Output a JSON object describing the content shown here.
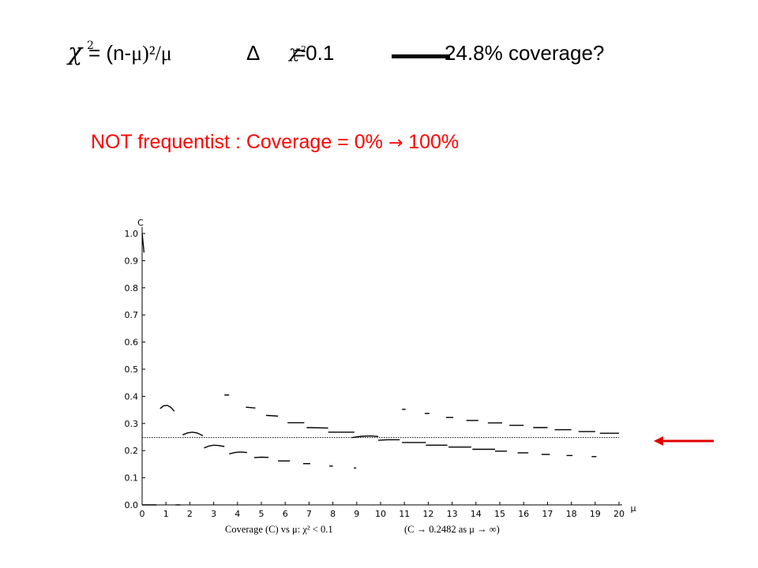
{
  "formula": {
    "chi_symbol": "χ",
    "chi_exp": "2",
    "expr_prefix": "= (n-",
    "expr_serif": "μ)²/μ",
    "delta": "Δ",
    "chi2_symbol": "χ",
    "chi2_exp": "2",
    "threshold": "=0.1",
    "result": "24.8% coverage?"
  },
  "headline": {
    "text": "NOT frequentist : Coverage = 0%",
    "arrow": "→",
    "tail": "100%",
    "color": "#ff0000"
  },
  "chart_data": {
    "type": "line",
    "ylabel": "C",
    "xlabel": "μ",
    "caption_left": "Coverage (C) vs μ:  χ² < 0.1",
    "caption_right": "(C → 0.2482 as μ → ∞)",
    "xlim": [
      0,
      20
    ],
    "ylim": [
      0,
      1.0
    ],
    "xticks": [
      "0",
      "1",
      "2",
      "3",
      "4",
      "5",
      "6",
      "7",
      "8",
      "9",
      "10",
      "11",
      "12",
      "13",
      "14",
      "15",
      "16",
      "17",
      "18",
      "19",
      "20"
    ],
    "yticks": [
      "0.0",
      "0.1",
      "0.2",
      "0.3",
      "0.4",
      "0.5",
      "0.6",
      "0.7",
      "0.8",
      "0.9",
      "1.0"
    ],
    "asymptote": 0.2482,
    "segments": [
      {
        "x": [
          0.0,
          0.08
        ],
        "y": [
          1.0,
          0.93
        ]
      },
      {
        "x": [
          0.0,
          0.6
        ],
        "y": [
          0.0,
          0.0
        ]
      },
      {
        "x": [
          1.4,
          1.6
        ],
        "y": [
          0.0,
          0.0
        ]
      },
      {
        "x": [
          0.75,
          0.9,
          1.05,
          1.2,
          1.35
        ],
        "y": [
          0.355,
          0.365,
          0.367,
          0.36,
          0.345
        ]
      },
      {
        "x": [
          1.7,
          1.9,
          2.1,
          2.3,
          2.55
        ],
        "y": [
          0.258,
          0.265,
          0.268,
          0.265,
          0.255
        ]
      },
      {
        "x": [
          2.6,
          2.8,
          3.0,
          3.2,
          3.45
        ],
        "y": [
          0.21,
          0.217,
          0.22,
          0.219,
          0.215
        ]
      },
      {
        "x": [
          3.45,
          3.65
        ],
        "y": [
          0.405,
          0.405
        ]
      },
      {
        "x": [
          3.65,
          3.9,
          4.1,
          4.4
        ],
        "y": [
          0.188,
          0.193,
          0.195,
          0.193
        ]
      },
      {
        "x": [
          4.35,
          4.75
        ],
        "y": [
          0.36,
          0.357
        ]
      },
      {
        "x": [
          4.7,
          5.0,
          5.3
        ],
        "y": [
          0.174,
          0.176,
          0.175
        ]
      },
      {
        "x": [
          5.2,
          5.7
        ],
        "y": [
          0.33,
          0.327
        ]
      },
      {
        "x": [
          5.7,
          6.2
        ],
        "y": [
          0.162,
          0.162
        ]
      },
      {
        "x": [
          6.1,
          6.8
        ],
        "y": [
          0.303,
          0.303
        ]
      },
      {
        "x": [
          6.75,
          7.05
        ],
        "y": [
          0.152,
          0.152
        ]
      },
      {
        "x": [
          6.9,
          7.8
        ],
        "y": [
          0.285,
          0.283
        ]
      },
      {
        "x": [
          7.85,
          8.0
        ],
        "y": [
          0.143,
          0.143
        ]
      },
      {
        "x": [
          7.8,
          8.9
        ],
        "y": [
          0.268,
          0.268
        ]
      },
      {
        "x": [
          8.88,
          8.98
        ],
        "y": [
          0.136,
          0.136
        ]
      },
      {
        "x": [
          8.8,
          9.2,
          9.6,
          9.9
        ],
        "y": [
          0.248,
          0.253,
          0.254,
          0.252
        ]
      },
      {
        "x": [
          9.9,
          10.3,
          10.8
        ],
        "y": [
          0.238,
          0.24,
          0.24
        ]
      },
      {
        "x": [
          10.9,
          11.05
        ],
        "y": [
          0.352,
          0.352
        ]
      },
      {
        "x": [
          10.9,
          11.5,
          11.9
        ],
        "y": [
          0.23,
          0.23,
          0.23
        ]
      },
      {
        "x": [
          11.85,
          12.05
        ],
        "y": [
          0.337,
          0.337
        ]
      },
      {
        "x": [
          11.9,
          12.8
        ],
        "y": [
          0.22,
          0.22
        ]
      },
      {
        "x": [
          12.75,
          13.05
        ],
        "y": [
          0.322,
          0.322
        ]
      },
      {
        "x": [
          12.85,
          13.8
        ],
        "y": [
          0.213,
          0.213
        ]
      },
      {
        "x": [
          13.6,
          14.1
        ],
        "y": [
          0.311,
          0.311
        ]
      },
      {
        "x": [
          13.85,
          14.8
        ],
        "y": [
          0.205,
          0.205
        ]
      },
      {
        "x": [
          14.5,
          15.1
        ],
        "y": [
          0.302,
          0.302
        ]
      },
      {
        "x": [
          14.8,
          15.3
        ],
        "y": [
          0.198,
          0.198
        ]
      },
      {
        "x": [
          15.4,
          16.0
        ],
        "y": [
          0.293,
          0.293
        ]
      },
      {
        "x": [
          15.75,
          16.2
        ],
        "y": [
          0.192,
          0.192
        ]
      },
      {
        "x": [
          16.4,
          17.0
        ],
        "y": [
          0.285,
          0.285
        ]
      },
      {
        "x": [
          16.75,
          17.1
        ],
        "y": [
          0.186,
          0.186
        ]
      },
      {
        "x": [
          17.3,
          18.0
        ],
        "y": [
          0.277,
          0.277
        ]
      },
      {
        "x": [
          17.8,
          18.05
        ],
        "y": [
          0.182,
          0.182
        ]
      },
      {
        "x": [
          18.3,
          19.0
        ],
        "y": [
          0.27,
          0.27
        ]
      },
      {
        "x": [
          18.85,
          19.05
        ],
        "y": [
          0.178,
          0.178
        ]
      },
      {
        "x": [
          19.2,
          20.0
        ],
        "y": [
          0.264,
          0.264
        ]
      }
    ]
  },
  "colors": {
    "indicator_arrow": "#e00000"
  }
}
